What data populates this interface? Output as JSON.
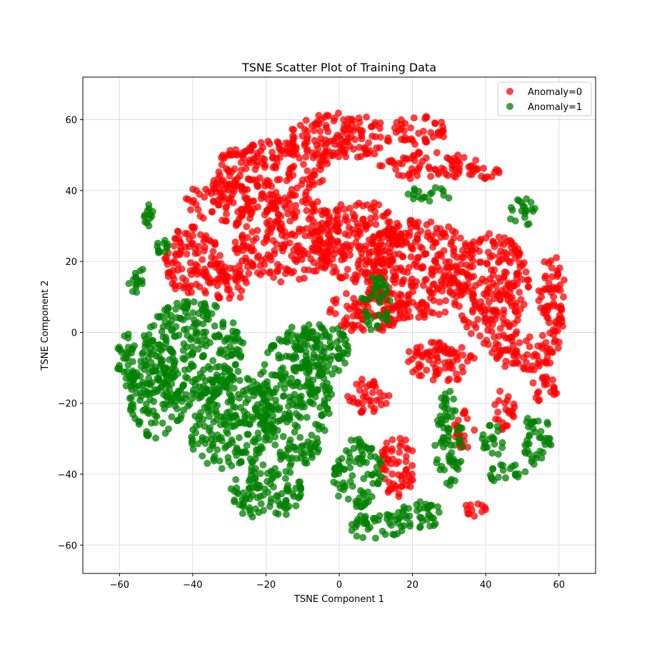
{
  "chart_data": {
    "type": "scatter",
    "title": "TSNE Scatter Plot of Training Data",
    "xlabel": "TSNE Component 1",
    "ylabel": "TSNE Component 2",
    "xlim": [
      -70,
      70
    ],
    "ylim": [
      -68,
      72
    ],
    "xticks": [
      -60,
      -40,
      -20,
      0,
      20,
      40,
      60
    ],
    "yticks": [
      -60,
      -40,
      -20,
      0,
      20,
      40,
      60
    ],
    "xtick_labels": [
      "−60",
      "−40",
      "−20",
      "0",
      "20",
      "40",
      "60"
    ],
    "ytick_labels": [
      "−60",
      "−40",
      "−20",
      "0",
      "20",
      "40",
      "60"
    ],
    "grid": true,
    "legend_position": "top-right",
    "series": [
      {
        "name": "Anomaly=0",
        "color": "#ff0000",
        "clusters": [
          {
            "cx": -18,
            "cy": 46,
            "rx": 16,
            "ry": 8
          },
          {
            "cx": 0,
            "cy": 55,
            "rx": 14,
            "ry": 7
          },
          {
            "cx": 22,
            "cy": 57,
            "rx": 8,
            "ry": 4
          },
          {
            "cx": 25,
            "cy": 47,
            "rx": 14,
            "ry": 4
          },
          {
            "cx": -33,
            "cy": 37,
            "rx": 9,
            "ry": 6
          },
          {
            "cx": -15,
            "cy": 27,
            "rx": 14,
            "ry": 13
          },
          {
            "cx": 5,
            "cy": 26,
            "rx": 12,
            "ry": 12
          },
          {
            "cx": 22,
            "cy": 18,
            "rx": 15,
            "ry": 14
          },
          {
            "cx": 42,
            "cy": 12,
            "rx": 10,
            "ry": 16
          },
          {
            "cx": -40,
            "cy": 20,
            "rx": 8,
            "ry": 10
          },
          {
            "cx": -30,
            "cy": 14,
            "rx": 6,
            "ry": 6
          },
          {
            "cx": 8,
            "cy": 6,
            "rx": 12,
            "ry": 6
          },
          {
            "cx": 28,
            "cy": -8,
            "rx": 10,
            "ry": 6
          },
          {
            "cx": 50,
            "cy": -6,
            "rx": 9,
            "ry": 5
          },
          {
            "cx": 58,
            "cy": 8,
            "rx": 4,
            "ry": 14
          },
          {
            "cx": 8,
            "cy": -18,
            "rx": 6,
            "ry": 5
          },
          {
            "cx": 16,
            "cy": -38,
            "rx": 5,
            "ry": 9
          },
          {
            "cx": 34,
            "cy": -28,
            "rx": 3,
            "ry": 6
          },
          {
            "cx": 37,
            "cy": -50,
            "rx": 3,
            "ry": 2
          },
          {
            "cx": 45,
            "cy": -22,
            "rx": 3,
            "ry": 6
          },
          {
            "cx": 56,
            "cy": -16,
            "rx": 4,
            "ry": 4
          },
          {
            "cx": 40,
            "cy": 45,
            "rx": 4,
            "ry": 2
          }
        ]
      },
      {
        "name": "Anomaly=1",
        "color": "#008000",
        "clusters": [
          {
            "cx": -40,
            "cy": -5,
            "rx": 14,
            "ry": 14
          },
          {
            "cx": -30,
            "cy": -25,
            "rx": 12,
            "ry": 14
          },
          {
            "cx": -50,
            "cy": -18,
            "rx": 8,
            "ry": 12
          },
          {
            "cx": -12,
            "cy": -18,
            "rx": 10,
            "ry": 20
          },
          {
            "cx": -20,
            "cy": -45,
            "rx": 10,
            "ry": 8
          },
          {
            "cx": -5,
            "cy": -5,
            "rx": 8,
            "ry": 8
          },
          {
            "cx": 5,
            "cy": -40,
            "rx": 7,
            "ry": 10
          },
          {
            "cx": 10,
            "cy": -55,
            "rx": 8,
            "ry": 4
          },
          {
            "cx": 22,
            "cy": -52,
            "rx": 6,
            "ry": 5
          },
          {
            "cx": -58,
            "cy": -8,
            "rx": 3,
            "ry": 8
          },
          {
            "cx": -55,
            "cy": 15,
            "rx": 3,
            "ry": 4
          },
          {
            "cx": -48,
            "cy": 24,
            "rx": 3,
            "ry": 2
          },
          {
            "cx": -52,
            "cy": 33,
            "rx": 1.5,
            "ry": 3
          },
          {
            "cx": 25,
            "cy": 39,
            "rx": 7,
            "ry": 2
          },
          {
            "cx": 50,
            "cy": 34,
            "rx": 4,
            "ry": 4
          },
          {
            "cx": 54,
            "cy": -30,
            "rx": 4,
            "ry": 8
          },
          {
            "cx": 46,
            "cy": -40,
            "rx": 5,
            "ry": 3
          },
          {
            "cx": 42,
            "cy": -30,
            "rx": 3,
            "ry": 5
          },
          {
            "cx": 30,
            "cy": -30,
            "rx": 4,
            "ry": 14
          },
          {
            "cx": 10,
            "cy": 8,
            "rx": 4,
            "ry": 8
          }
        ]
      }
    ]
  }
}
